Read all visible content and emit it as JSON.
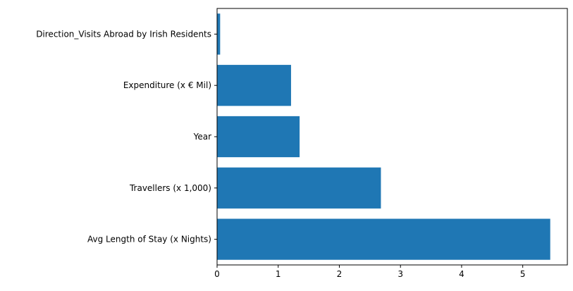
{
  "chart_data": {
    "type": "bar",
    "orientation": "horizontal",
    "categories": [
      "Avg Length of Stay (x Nights)",
      "Travellers (x 1,000)",
      "Year",
      "Expenditure (x € Mil)",
      "Direction_Visits Abroad by Irish Residents"
    ],
    "values": [
      5.45,
      2.68,
      1.35,
      1.21,
      0.05
    ],
    "xlim": [
      0,
      5.73
    ],
    "xticks": [
      0,
      1,
      2,
      3,
      4,
      5
    ],
    "grid": false,
    "bar_color": "#1f77b4",
    "title": "",
    "xlabel": "",
    "ylabel": ""
  }
}
